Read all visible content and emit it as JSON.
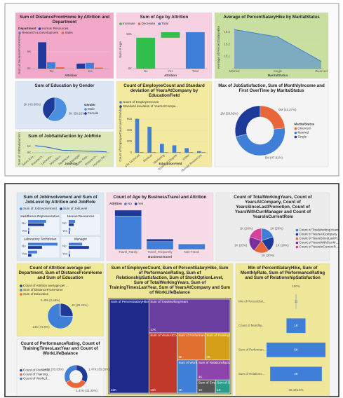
{
  "chart_data": [
    {
      "type": "bar",
      "title": "Sum of DistanceFromHome by Attrition and Department",
      "legend_title": "Department",
      "categories": [
        "No",
        "Yes"
      ],
      "series": [
        {
          "name": "Human Resources",
          "color": "#1f3a9e",
          "values": [
            7800,
            1500
          ]
        },
        {
          "name": "Research & Development",
          "color": "#3f7fd8",
          "values": [
            1900,
            1700
          ]
        },
        {
          "name": "Sales",
          "color": "#e8663a",
          "values": [
            400,
            300
          ]
        }
      ],
      "ylim": [
        0,
        8500
      ],
      "yticks": [
        {
          "value": 0,
          "label": "0K"
        },
        {
          "value": 5000,
          "label": "5K"
        }
      ],
      "x_label": "Attrition",
      "y_label": "Sum of DistanceFromHome"
    },
    {
      "type": "waterfall",
      "title": "Sum of Age by Attrition",
      "categories": [
        "No",
        "Yes",
        "Total"
      ],
      "values": [
        45000,
        8000,
        53000
      ],
      "measures": [
        "increase",
        "increase",
        "total"
      ],
      "series": [
        {
          "name": "Increase",
          "color": "#2fbf4a"
        },
        {
          "name": "Decrease",
          "color": "#e8663a"
        },
        {
          "name": "Total",
          "color": "#3f7fd8"
        }
      ],
      "ylim": [
        0,
        55000
      ],
      "yticks": [
        {
          "value": 0,
          "label": "0K"
        },
        {
          "value": 50000,
          "label": "50K"
        }
      ],
      "x_label": "Attrition",
      "y_label": "Sum of Age"
    },
    {
      "type": "line",
      "area": true,
      "title": "Average of PercentSalaryHike by MaritalStatus",
      "categories": [
        "Married",
        "Single",
        "Divorced"
      ],
      "values": [
        15.32,
        15.26,
        15.06
      ],
      "color": "#3f7fd8",
      "ylim": [
        15.0,
        15.35
      ],
      "yticks": [
        15.1,
        15.2,
        15.3
      ],
      "x_label": "MaritalStatus",
      "y_label": "Average of PercentSalaryHike"
    },
    {
      "type": "pie",
      "hole": 0,
      "legend": "right",
      "title": "Sum of Education by Gender",
      "legend_title": "Gender",
      "categories": [
        "Male",
        "Female"
      ],
      "values": [
        59.92,
        40.08
      ],
      "value_labels": [
        "3K (59.92%)",
        "2K (40.08%)"
      ],
      "colors": [
        "#4a8fe0",
        "#1e3a99"
      ]
    },
    {
      "type": "line",
      "area": false,
      "title": "Sum of JobSatisfaction by JobRole",
      "categories": [
        "Sales Exe...",
        "Research...",
        "Laborato...",
        "Manufact...",
        "Healthcar...",
        "Manager",
        "Sales Rep...",
        "Research...",
        "Human Re..."
      ],
      "values": [
        1100,
        960,
        700,
        400,
        360,
        280,
        230,
        210,
        140
      ],
      "color": "#1f5fbf",
      "ylim": [
        0,
        1200
      ],
      "yticks": [
        {
          "value": 0,
          "label": "0K"
        },
        {
          "value": 1000,
          "label": "1K"
        }
      ],
      "x_label": "JobRole",
      "y_label": "Sum of JobSatisfaction"
    },
    {
      "type": "bar",
      "title": "Count of EmployeeCount and Standard deviation of YearsAtCompany by EducationField",
      "categories": [
        "Life Sciences",
        "Medical",
        "Marketing",
        "Technical Degree",
        "Other",
        "Human Resources"
      ],
      "series": [
        {
          "name": "Count of EmployeeCount",
          "color": "#3f7fd8",
          "values": [
            606,
            464,
            159,
            132,
            82,
            27
          ]
        },
        {
          "name": "Standard deviation of YearsAtCompa...",
          "color": "#1e3a99",
          "values": [
            6.4,
            6.1,
            5.5,
            5.9,
            6.3,
            5.7
          ]
        }
      ],
      "ylim": [
        0,
        700
      ],
      "yticks": [
        0,
        200,
        400,
        600
      ],
      "x_label": "EducationField",
      "y_label": "Count of EmployeeCount and Standar..."
    },
    {
      "type": "pie",
      "hole": 0.55,
      "legend": "right",
      "title": "Max of JobSatisfaction, Sum of MonthlyIncome and First OverTime by MaritalStatus",
      "legend_title": "MaritalStatus",
      "categories": [
        "Divorced",
        "Married",
        "Single"
      ],
      "values": [
        23.27,
        47.81,
        28.92
      ],
      "value_labels": [
        "0M (23.27%)",
        "5M (47.81%)",
        "2M (28.92%)"
      ],
      "colors": [
        "#e8663a",
        "#3f7fd8",
        "#1e3a99"
      ]
    },
    {
      "type": "multiples",
      "title": "Sum of JobInvolvement and Sum of JobLevel by Attrition and JobRole",
      "categories": [
        "No",
        "Yes"
      ],
      "series": [
        {
          "name": "Sum of JobInvolvement",
          "color": "#3f7fd8"
        },
        {
          "name": "Sum of JobLevel",
          "color": "#1e3a99"
        }
      ],
      "facets": [
        {
          "name": "Healthcare Representative",
          "values": [
            [
              334,
              23
            ],
            [
              298,
              20
            ]
          ]
        },
        {
          "name": "Human Resources",
          "values": [
            [
              117,
              29
            ],
            [
              93,
              18
            ]
          ]
        },
        {
          "name": "Laboratory Technician",
          "values": [
            [
              547,
              167
            ],
            [
              259,
              62
            ]
          ]
        },
        {
          "name": "Manager",
          "values": [
            [
              249,
              13
            ],
            [
              375,
              22
            ]
          ]
        }
      ]
    },
    {
      "type": "stacked",
      "title": "Count of Age by BusinessTravel and Attrition",
      "legend_title": "Attrition",
      "categories": [
        "Travel_Rarely",
        "Travel_Frequently",
        "Non-Travel"
      ],
      "series": [
        {
          "name": "No",
          "color": "#3f7fd8",
          "values": [
            887,
            208,
            138
          ]
        },
        {
          "name": "Yes",
          "color": "#1e3a99",
          "values": [
            156,
            69,
            12
          ]
        }
      ],
      "x_label": "BusinessTravel"
    },
    {
      "type": "pie",
      "hole": 0,
      "legend": "right",
      "title": "Count of TotalWorkingYears, Count of YearsAtCompany, Count of YearsSinceLastPromotion, Count of YearsWithCurrManager and Count of YearsInCurrentRole",
      "categories": [
        "Count of TotalWorkingYears",
        "Count of YearsAtCompany",
        "Count of YearsSinceLastPr...",
        "Count of YearsWithCurrM...",
        "Count of YearsInCurrentR..."
      ],
      "values": [
        20,
        20,
        20,
        20,
        20
      ],
      "value_labels": [
        "1K (20%)",
        "1K (20%)",
        "1K (20%)",
        "1K (20%)",
        "1K (20%)"
      ],
      "colors": [
        "#3f7fd8",
        "#1e3a99",
        "#e8663a",
        "#7a2fa0",
        "#d6409f"
      ]
    },
    {
      "type": "pie",
      "hole": 0,
      "legend": "top",
      "title": "Count of Attrition average per Department, Sum of DistanceFromHome and Sum of Education",
      "categories": [
        "Count of Attrition average per ...",
        "Sum of DistanceFromHome",
        "Sum of Education"
      ],
      "values": [
        25.42,
        73.9,
        0.68
      ],
      "value_labels": [
        "49 (25.42%)",
        "146 (73.9%)",
        "0.496 (0.68%)"
      ],
      "colors": [
        "#1e3a99",
        "#3f7fd8",
        "#e8663a"
      ]
    },
    {
      "type": "treemap",
      "title": "Sum of EmployeeCount, Sum of PercentSalaryHike, Sum of PerformanceRating, Sum of RelationshipSatisfaction, Sum of StockOptionLevel, Sum of TotalWorkingYears, Sum of TrainingTimesLastYear, Sum of YearsAtCompany and Sum of WorkLifeBalance",
      "categories": [
        "Sum of PercentSalaryHike",
        "Sum of TotalWorkingYears",
        "Sum of YearsAtCompany",
        "Sum of PerformanceRating",
        "Sum of TrainingTimesLastYear",
        "Sum of WorkLifeBalance",
        "Sum of RelationshipSatisfaction",
        "Sum of EmployeeCount",
        "Sum of StockOptionLevel"
      ],
      "values": [
        22487,
        16581,
        10304,
        4620,
        4123,
        4001,
        3990,
        1470,
        1173
      ],
      "value_labels": [
        "22K",
        "17K",
        "10K",
        "5K",
        "4K",
        "4K",
        "4K",
        "1K",
        "1K"
      ],
      "colors": [
        "#1e2a8a",
        "#6b3fa0",
        "#c0392b",
        "#e07030",
        "#d4a017",
        "#3f7fd8",
        "#8e44ad",
        "#555555",
        "#2a9d8f"
      ]
    },
    {
      "type": "funnel",
      "title": "Min of PercentSalaryHike, Sum of MonthlyRate, Sum of PerformanceRating and Sum of RelationshipSatisfaction",
      "categories": [
        "Min of PercentSal...",
        "Count of Monthly...",
        "Sum of Performan...",
        "Sum of Relations..."
      ],
      "values": [
        11,
        1470,
        4556,
        3998
      ],
      "value_labels": [
        "11",
        "1K",
        "5K",
        "4K"
      ],
      "color": "#3f7fd8",
      "top_label": "100%",
      "bottom_label": "36,345.5%"
    },
    {
      "type": "pie",
      "hole": 0.55,
      "legend": "left",
      "title": "Count of PerformanceRating, Count of TrainingTimesLastYear and Count of WorkLifeBalance",
      "categories": [
        "Count of Performa...",
        "Count of Training...",
        "Count of WorkLif..."
      ],
      "values": [
        33.33,
        33.33,
        33.33
      ],
      "value_labels": [
        "1.47K (33.33%)",
        "1.47K (33.33%)",
        "1.47K (33.33%)"
      ],
      "colors": [
        "#1e3a99",
        "#e8663a",
        "#3f7fd8"
      ]
    }
  ]
}
